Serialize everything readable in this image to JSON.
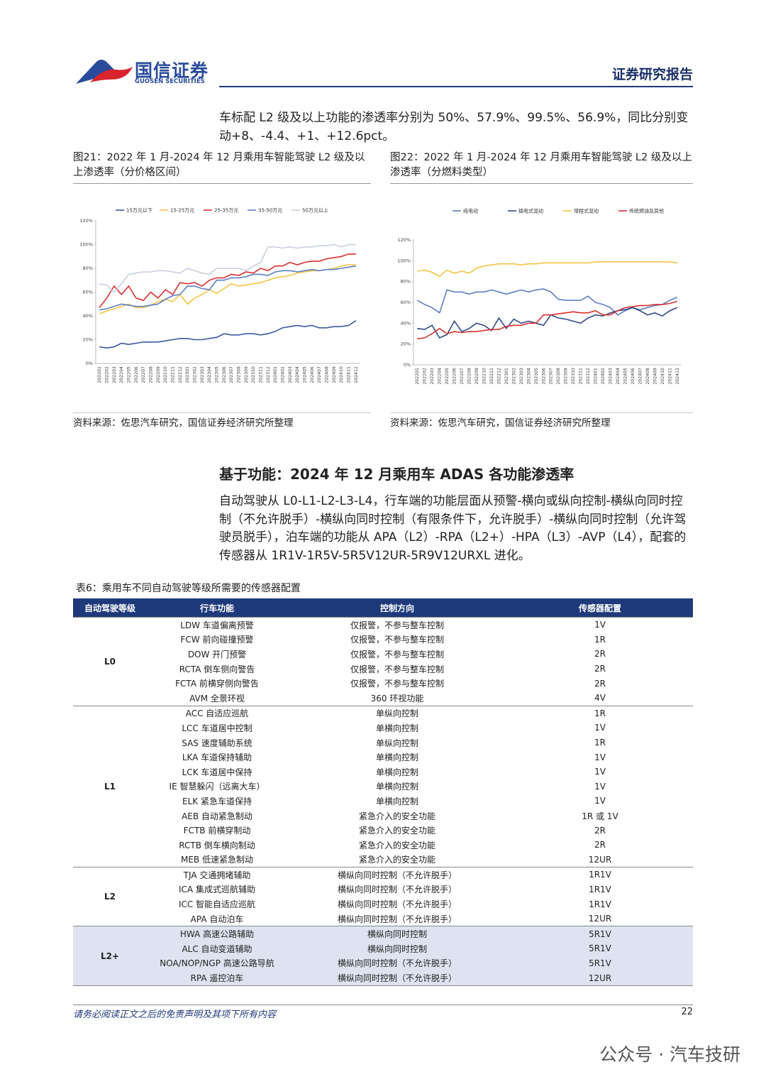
{
  "header": {
    "brand": "国信证券",
    "brand_en": "GUOSEN SECURITIES",
    "report_type": "证券研究报告"
  },
  "intro": "车标配 L2 级及以上功能的渗透率分别为 50%、57.9%、99.5%、56.9%，同比分别变动+8、-4.4、+1、+12.6pct。",
  "figures": [
    {
      "caption": "图21：2022 年 1 月-2024 年 12 月乘用车智能驾驶 L2 级及以上渗透率（分价格区间）",
      "source": "资料来源：佐思汽车研究，国信证券经济研究所整理"
    },
    {
      "caption": "图22：2022 年 1 月-2024 年 12 月乘用车智能驾驶 L2 级及以上渗透率（分燃料类型）",
      "source": "资料来源：佐思汽车研究，国信证券经济研究所整理"
    }
  ],
  "chart_data": [
    {
      "type": "line",
      "categories": [
        "202201",
        "202202",
        "202203",
        "202204",
        "202205",
        "202206",
        "202207",
        "202208",
        "202209",
        "202210",
        "202211",
        "202212",
        "202301",
        "202302",
        "202303",
        "202304",
        "202305",
        "202306",
        "202307",
        "202308",
        "202309",
        "202310",
        "202311",
        "202312",
        "202401",
        "202402",
        "202403",
        "202404",
        "202405",
        "202406",
        "202407",
        "202408",
        "202409",
        "202410",
        "202411",
        "202412"
      ],
      "ylim": [
        0,
        120
      ],
      "yticks": [
        {
          "value": 0,
          "label": "0%"
        },
        {
          "value": 20,
          "label": "20%"
        },
        {
          "value": 40,
          "label": "40%"
        },
        {
          "value": 60,
          "label": "60%"
        },
        {
          "value": 80,
          "label": "80%"
        },
        {
          "value": 100,
          "label": "100%"
        },
        {
          "value": 120,
          "label": "120%"
        }
      ],
      "legend": "top",
      "series": [
        {
          "name": "15万元以下",
          "color": "#3b5aa3",
          "values": [
            14,
            13,
            14,
            17,
            16,
            17,
            18,
            18,
            18,
            19,
            20,
            21,
            21,
            20,
            20,
            21,
            22,
            25,
            24,
            24,
            25,
            25,
            24,
            25,
            27,
            30,
            31,
            32,
            31,
            32,
            30,
            30,
            31,
            31,
            32,
            36
          ]
        },
        {
          "name": "15-25万元",
          "color": "#f5c342",
          "values": [
            42,
            44,
            46,
            48,
            50,
            47,
            47,
            49,
            52,
            54,
            52,
            58,
            50,
            55,
            58,
            62,
            59,
            63,
            67,
            65,
            66,
            67,
            68,
            70,
            72,
            73,
            74,
            76,
            77,
            78,
            78,
            79,
            80,
            82,
            83,
            83
          ]
        },
        {
          "name": "25-35万元",
          "color": "#d9312f",
          "values": [
            47,
            55,
            65,
            58,
            65,
            55,
            53,
            60,
            55,
            62,
            58,
            68,
            67,
            68,
            65,
            70,
            72,
            72,
            75,
            74,
            77,
            76,
            80,
            78,
            82,
            82,
            85,
            83,
            85,
            86,
            86,
            88,
            89,
            90,
            92,
            92
          ]
        },
        {
          "name": "35-50万元",
          "color": "#5b80c8",
          "values": [
            45,
            46,
            48,
            50,
            49,
            48,
            48,
            49,
            50,
            54,
            57,
            58,
            65,
            65,
            63,
            62,
            70,
            70,
            72,
            72,
            73,
            75,
            75,
            74,
            77,
            78,
            78,
            77,
            78,
            79,
            78,
            79,
            79,
            80,
            81,
            82
          ]
        },
        {
          "name": "50万元以上",
          "color": "#c7cfe2",
          "values": [
            67,
            66,
            60,
            67,
            75,
            76,
            77,
            77,
            78,
            78,
            77,
            76,
            80,
            78,
            76,
            75,
            80,
            80,
            80,
            80,
            78,
            82,
            85,
            98,
            98,
            97,
            98,
            97,
            98,
            98,
            99,
            99,
            100,
            98,
            100,
            100
          ]
        }
      ]
    },
    {
      "type": "line",
      "categories": [
        "202201",
        "202202",
        "202203",
        "202204",
        "202205",
        "202206",
        "202207",
        "202208",
        "202209",
        "202210",
        "202211",
        "202212",
        "202301",
        "202302",
        "202303",
        "202304",
        "202305",
        "202306",
        "202307",
        "202308",
        "202309",
        "202310",
        "202311",
        "202312",
        "202401",
        "202402",
        "202403",
        "202404",
        "202405",
        "202406",
        "202407",
        "202408",
        "202409",
        "202410",
        "202411",
        "202412"
      ],
      "ylim": [
        0,
        120
      ],
      "yticks": [
        {
          "value": 0,
          "label": "0%"
        },
        {
          "value": 20,
          "label": "20%"
        },
        {
          "value": 40,
          "label": "40%"
        },
        {
          "value": 60,
          "label": "60%"
        },
        {
          "value": 80,
          "label": "80%"
        },
        {
          "value": 100,
          "label": "100%"
        },
        {
          "value": 120,
          "label": "120%"
        }
      ],
      "legend": "top",
      "series": [
        {
          "name": "纯电动",
          "color": "#5b80c8",
          "values": [
            62,
            58,
            55,
            50,
            72,
            70,
            70,
            68,
            70,
            70,
            72,
            70,
            68,
            70,
            72,
            70,
            72,
            73,
            70,
            63,
            62,
            62,
            62,
            66,
            60,
            58,
            55,
            48,
            52,
            55,
            53,
            55,
            57,
            58,
            62,
            65
          ]
        },
        {
          "name": "插电式混动",
          "color": "#2f4a8a",
          "values": [
            35,
            34,
            38,
            26,
            29,
            42,
            32,
            35,
            40,
            38,
            33,
            45,
            35,
            44,
            40,
            42,
            40,
            38,
            48,
            45,
            44,
            42,
            40,
            45,
            48,
            47,
            50,
            52,
            53,
            55,
            52,
            48,
            50,
            47,
            52,
            55
          ]
        },
        {
          "name": "增程式混动",
          "color": "#f5c342",
          "values": [
            90,
            91,
            89,
            85,
            91,
            88,
            90,
            88,
            93,
            95,
            96,
            97,
            97,
            97,
            96,
            97,
            97,
            98,
            98,
            98,
            98,
            98,
            98,
            98,
            99,
            99,
            99,
            99,
            99,
            99,
            99,
            99,
            99,
            99,
            99,
            98
          ]
        },
        {
          "name": "传统燃油及其他",
          "color": "#d9312f",
          "values": [
            25,
            26,
            30,
            35,
            30,
            32,
            31,
            32,
            32,
            33,
            34,
            34,
            37,
            38,
            38,
            40,
            40,
            48,
            48,
            49,
            50,
            51,
            50,
            50,
            52,
            48,
            48,
            52,
            55,
            56,
            57,
            57,
            58,
            58,
            59,
            61
          ]
        }
      ]
    }
  ],
  "section": {
    "heading": "基于功能：2024 年 12 月乘用车 ADAS 各功能渗透率",
    "body": "自动驾驶从 L0-L1-L2-L3-L4，行车端的功能层面从预警-横向或纵向控制-横纵向同时控制（不允许脱手）-横纵向同时控制（有限条件下，允许脱手）-横纵向同时控制（允许驾驶员脱手），泊车端的功能从 APA（L2）-RPA（L2+）-HPA（L3）-AVP（L4），配套的传感器从 1R1V-1R5V-5R5V12UR-5R9V12URXL 进化。"
  },
  "table": {
    "caption": "表6：乘用车不同自动驾驶等级所需要的传感器配置",
    "headers": [
      "自动驾驶等级",
      "行车功能",
      "控制方向",
      "传感器配置"
    ],
    "groups": [
      {
        "level": "L0",
        "rows": [
          [
            "LDW 车道偏离预警",
            "仅报警，不参与整车控制",
            "1V"
          ],
          [
            "FCW 前向碰撞预警",
            "仅报警，不参与整车控制",
            "1R"
          ],
          [
            "DOW 开门预警",
            "仅报警，不参与整车控制",
            "2R"
          ],
          [
            "RCTA 倒车侧向警告",
            "仅报警，不参与整车控制",
            "2R"
          ],
          [
            "FCTA 前横穿侧向警告",
            "仅报警，不参与整车控制",
            "2R"
          ],
          [
            "AVM 全景环视",
            "360 环视功能",
            "4V"
          ]
        ]
      },
      {
        "level": "L1",
        "rows": [
          [
            "ACC 自适应巡航",
            "单纵向控制",
            "1R"
          ],
          [
            "LCC 车道居中控制",
            "单横向控制",
            "1V"
          ],
          [
            "SAS 速度辅助系统",
            "单纵向控制",
            "1R"
          ],
          [
            "LKA 车道保持辅助",
            "单横向控制",
            "1V"
          ],
          [
            "LCK 车道居中保持",
            "单横向控制",
            "1V"
          ],
          [
            "IE 智慧躲闪（远离大车）",
            "单横向控制",
            "1V"
          ],
          [
            "ELK 紧急车道保持",
            "单横向控制",
            "1V"
          ],
          [
            "AEB 自动紧急制动",
            "紧急介入的安全功能",
            "1R 或 1V"
          ],
          [
            "FCTB 前横穿制动",
            "紧急介入的安全功能",
            "2R"
          ],
          [
            "RCTB 倒车横向制动",
            "紧急介入的安全功能",
            "2R"
          ],
          [
            "MEB 低速紧急制动",
            "紧急介入的安全功能",
            "12UR"
          ]
        ]
      },
      {
        "level": "L2",
        "rows": [
          [
            "TJA 交通拥堵辅助",
            "横纵向同时控制（不允许脱手）",
            "1R1V"
          ],
          [
            "ICA 集成式巡航辅助",
            "横纵向同时控制（不允许脱手）",
            "1R1V"
          ],
          [
            "ICC 智能自适应巡航",
            "横纵向同时控制（不允许脱手）",
            "1R1V"
          ],
          [
            "APA 自动泊车",
            "横纵向同时控制（不允许脱手）",
            "12UR"
          ]
        ]
      },
      {
        "level": "L2+",
        "rows": [
          [
            "HWA 高速公路辅助",
            "横纵向同时控制",
            "5R1V"
          ],
          [
            "ALC 自动变道辅助",
            "横纵向同时控制",
            "5R1V"
          ],
          [
            "NOA/NOP/NGP 高速公路导航",
            "横纵向同时控制（不允许脱手）",
            "5R1V"
          ],
          [
            "RPA 遥控泊车",
            "横纵向同时控制（不允许脱手）",
            "12UR"
          ]
        ]
      }
    ]
  },
  "footer": {
    "disclaimer": "请务必阅读正文之后的免责声明及其项下所有内容",
    "page": "22",
    "watermark": "公众号 · 汽车技研"
  }
}
